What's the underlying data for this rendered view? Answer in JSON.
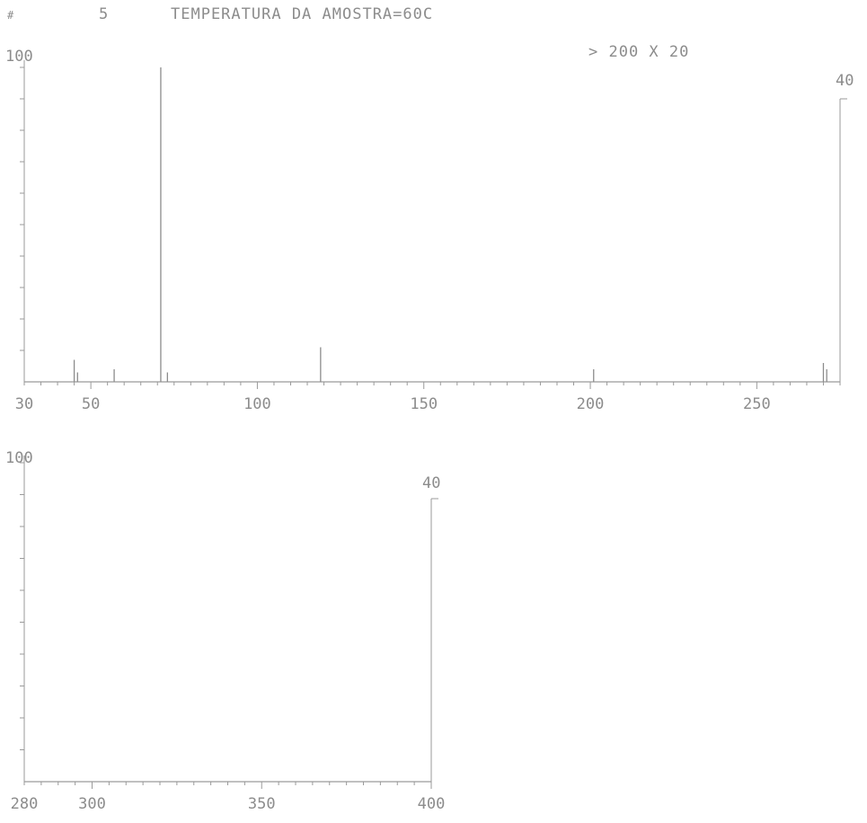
{
  "header": {
    "hash": "#",
    "spectrum_number": "5",
    "title": "TEMPERATURA DA AMOSTRA=60C"
  },
  "scale_note": "> 200 X 20",
  "chart_data": [
    {
      "type": "bar",
      "title": "",
      "xlabel": "",
      "ylabel": "",
      "xlim": [
        30,
        275
      ],
      "ylim": [
        0,
        100
      ],
      "y_top_label": "100",
      "right_axis_label": "40",
      "x_ticks": [
        30,
        50,
        100,
        150,
        200,
        250
      ],
      "series": [
        {
          "x": [
            45,
            46,
            57,
            71,
            73,
            119,
            201,
            270,
            271
          ],
          "values": [
            7,
            3,
            4,
            100,
            3,
            11,
            4,
            6,
            4
          ]
        }
      ]
    },
    {
      "type": "bar",
      "title": "",
      "xlabel": "",
      "ylabel": "",
      "xlim": [
        280,
        400
      ],
      "ylim": [
        0,
        100
      ],
      "y_top_label": "100",
      "right_axis_label": "40",
      "x_ticks": [
        280,
        300,
        350,
        400
      ],
      "series": [
        {
          "x": [],
          "values": []
        }
      ]
    }
  ]
}
